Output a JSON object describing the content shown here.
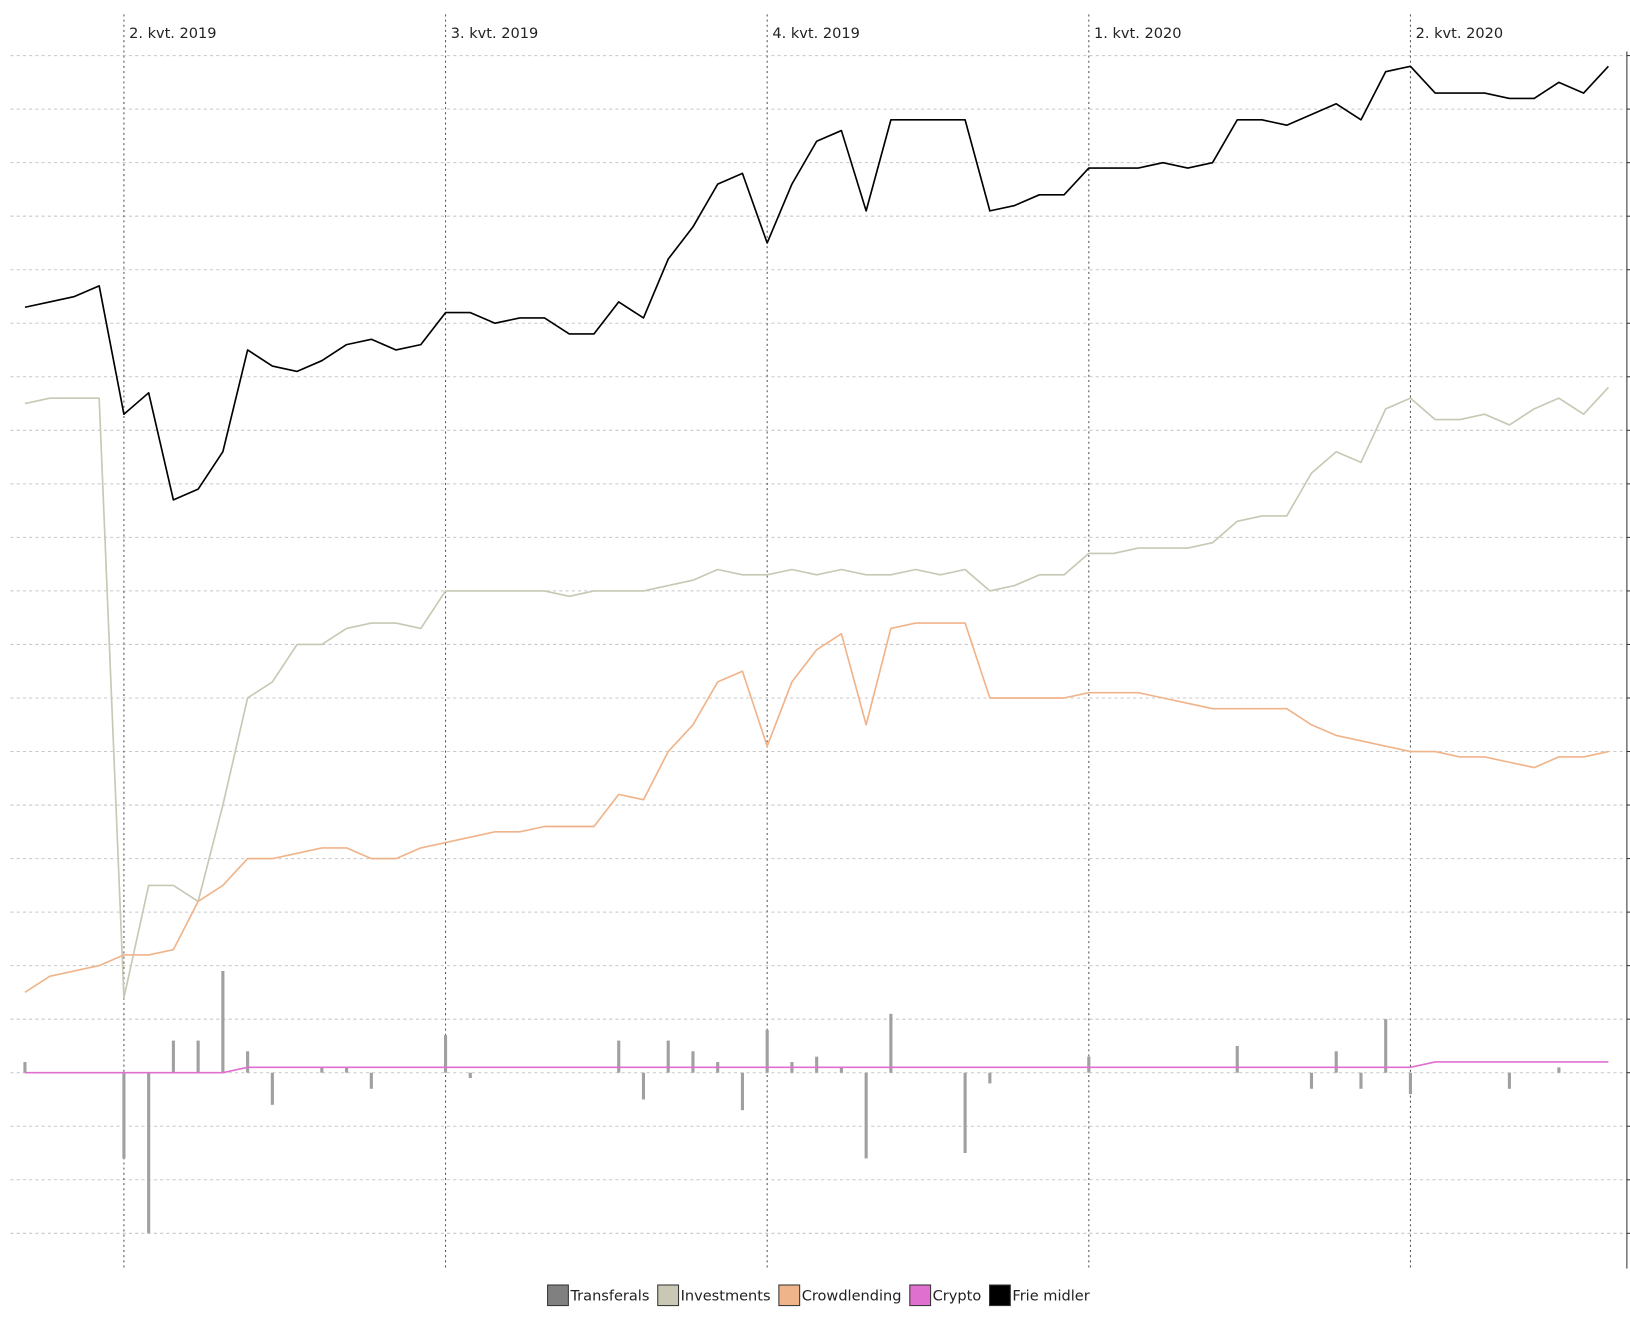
{
  "chart_data": {
    "type": "combo",
    "categories": [
      null,
      null,
      null,
      null,
      "2. kvt. 2019",
      null,
      null,
      null,
      null,
      null,
      null,
      null,
      null,
      null,
      null,
      null,
      null,
      "3. kvt. 2019",
      null,
      null,
      null,
      null,
      null,
      null,
      null,
      null,
      null,
      null,
      null,
      null,
      "4. kvt. 2019",
      null,
      null,
      null,
      null,
      null,
      null,
      null,
      null,
      null,
      null,
      null,
      null,
      "1. kvt. 2020",
      null,
      null,
      null,
      null,
      null,
      null,
      null,
      null,
      null,
      null,
      null,
      null,
      "2. kvt. 2020",
      null,
      null,
      null,
      null,
      null,
      null,
      null,
      null
    ],
    "series": [
      {
        "name": "Transferals",
        "type": "bar",
        "color": "#a0a0a0",
        "legend_color": "#808080",
        "values": [
          2,
          0,
          0,
          0,
          -16,
          -30,
          6,
          6,
          19,
          4,
          -6,
          0,
          1,
          1,
          -3,
          0,
          0,
          7,
          -1,
          0,
          0,
          0,
          0,
          0,
          6,
          -5,
          6,
          4,
          2,
          -7,
          8,
          2,
          3,
          1,
          -16,
          11,
          0,
          0,
          -15,
          -2,
          0,
          0,
          0,
          3,
          0,
          0,
          0,
          0,
          0,
          5,
          0,
          0,
          -3,
          4,
          -3,
          10,
          -4,
          0,
          0,
          0,
          -3,
          0,
          1,
          0,
          0
        ]
      },
      {
        "name": "Investments",
        "type": "line",
        "color": "#c8c8b4",
        "values": [
          125,
          126,
          126,
          126,
          14,
          35,
          35,
          32,
          50,
          70,
          73,
          80,
          80,
          83,
          84,
          84,
          83,
          90,
          90,
          90,
          90,
          90,
          89,
          90,
          90,
          90,
          91,
          92,
          94,
          93,
          93,
          94,
          93,
          94,
          93,
          93,
          94,
          93,
          94,
          90,
          91,
          93,
          93,
          97,
          97,
          98,
          98,
          98,
          99,
          103,
          104,
          104,
          112,
          116,
          114,
          124,
          126,
          122,
          122,
          123,
          121,
          124,
          126,
          123,
          128
        ]
      },
      {
        "name": "Crowdlending",
        "type": "line",
        "color": "#f0b48a",
        "values": [
          15,
          18,
          19,
          20,
          22,
          22,
          23,
          32,
          35,
          40,
          40,
          41,
          42,
          42,
          40,
          40,
          42,
          43,
          44,
          45,
          45,
          46,
          46,
          46,
          52,
          51,
          60,
          65,
          73,
          75,
          61,
          73,
          79,
          82,
          65,
          83,
          84,
          84,
          84,
          70,
          70,
          70,
          70,
          71,
          71,
          71,
          70,
          69,
          68,
          68,
          68,
          68,
          65,
          63,
          62,
          61,
          60,
          60,
          59,
          59,
          58,
          57,
          59,
          59,
          60
        ]
      },
      {
        "name": "Crypto",
        "type": "line",
        "color": "#e070d0",
        "values": [
          0,
          0,
          0,
          0,
          0,
          0,
          0,
          0,
          0,
          1,
          1,
          1,
          1,
          1,
          1,
          1,
          1,
          1,
          1,
          1,
          1,
          1,
          1,
          1,
          1,
          1,
          1,
          1,
          1,
          1,
          1,
          1,
          1,
          1,
          1,
          1,
          1,
          1,
          1,
          1,
          1,
          1,
          1,
          1,
          1,
          1,
          1,
          1,
          1,
          1,
          1,
          1,
          1,
          1,
          1,
          1,
          1,
          2,
          2,
          2,
          2,
          2,
          2,
          2,
          2
        ]
      },
      {
        "name": "Frie midler",
        "type": "line",
        "color": "#000000",
        "values": [
          143,
          144,
          145,
          147,
          123,
          127,
          107,
          109,
          116,
          135,
          132,
          131,
          133,
          136,
          137,
          135,
          136,
          142,
          142,
          140,
          141,
          141,
          138,
          138,
          144,
          141,
          152,
          158,
          166,
          168,
          155,
          166,
          174,
          176,
          161,
          178,
          178,
          178,
          178,
          161,
          162,
          164,
          164,
          169,
          169,
          169,
          170,
          169,
          170,
          178,
          178,
          177,
          179,
          181,
          178,
          187,
          188,
          183,
          183,
          183,
          182,
          182,
          185,
          183,
          188
        ]
      }
    ],
    "ylim": [
      -36,
      200
    ],
    "yticks": [
      -30,
      -20,
      -10,
      0,
      10,
      20,
      30,
      40,
      50,
      60,
      70,
      80,
      90,
      100,
      110,
      120,
      130,
      140,
      150,
      160,
      170,
      180,
      190
    ],
    "grid": true
  }
}
